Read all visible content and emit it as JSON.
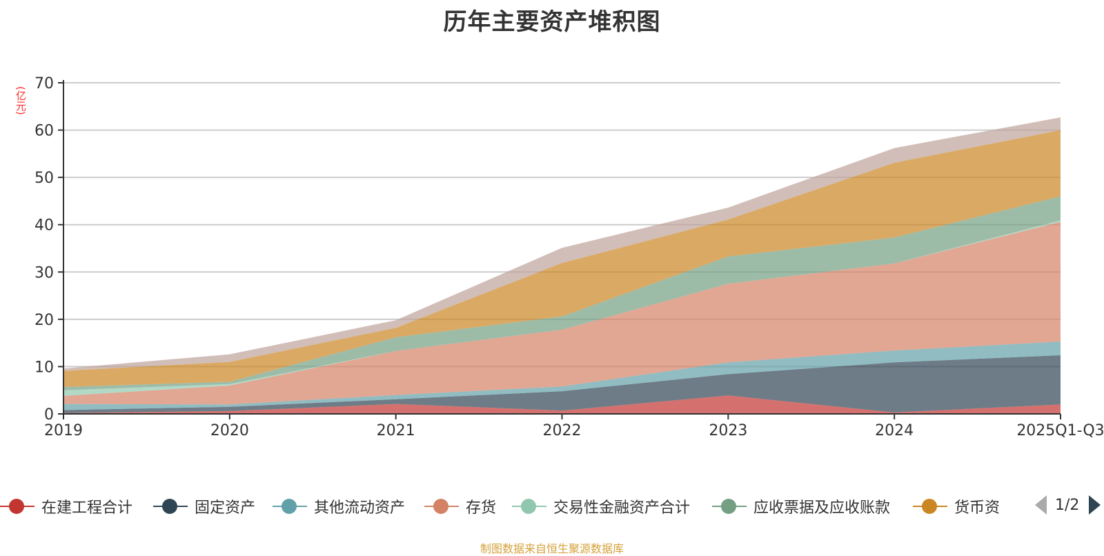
{
  "chart_data": {
    "type": "area",
    "stacked": true,
    "title": "历年主要资产堆积图",
    "ylabel": "(亿元)",
    "xlabel": "",
    "ylim": [
      0,
      70
    ],
    "yticks": [
      0,
      10,
      20,
      30,
      40,
      50,
      60,
      70
    ],
    "grid": true,
    "categories": [
      "2019",
      "2020",
      "2021",
      "2022",
      "2023",
      "2024",
      "2025Q1-Q3"
    ],
    "series": [
      {
        "name": "在建工程合计",
        "color": "#c23531",
        "values": [
          0.2,
          0.6,
          2.1,
          0.7,
          3.9,
          0.3,
          2.0
        ]
      },
      {
        "name": "固定资产",
        "color": "#2f4554",
        "values": [
          0.6,
          0.9,
          1.0,
          4.1,
          4.5,
          10.6,
          10.4
        ]
      },
      {
        "name": "其他流动资产",
        "color": "#61a0a8",
        "values": [
          1.3,
          0.5,
          0.9,
          1.0,
          2.5,
          2.5,
          2.9
        ]
      },
      {
        "name": "存货",
        "color": "#d48265",
        "values": [
          1.7,
          4.0,
          9.3,
          12.0,
          16.6,
          18.4,
          25.3
        ]
      },
      {
        "name": "交易性金融资产合计",
        "color": "#91c7ae",
        "values": [
          1.2,
          0.3,
          0.0,
          0.0,
          0.0,
          0.0,
          0.3
        ]
      },
      {
        "name": "应收票据及应收账款",
        "color": "#749f83",
        "values": [
          0.7,
          0.5,
          2.9,
          2.8,
          5.8,
          5.5,
          5.1
        ]
      },
      {
        "name": "货币资",
        "color": "#ca8622",
        "values": [
          3.4,
          4.2,
          2.0,
          11.3,
          7.8,
          15.8,
          14.0
        ]
      },
      {
        "name": "",
        "color": "#bda29a",
        "values": [
          0.5,
          1.6,
          1.6,
          3.2,
          2.5,
          3.1,
          2.7
        ]
      }
    ],
    "legend": {
      "position": "bottom",
      "page": "1/2",
      "visible_items": [
        "在建工程合计",
        "固定资产",
        "其他流动资产",
        "存货",
        "交易性金融资产合计",
        "应收票据及应收账款",
        "货币资"
      ]
    }
  },
  "footer": {
    "source": "制图数据来自恒生聚源数据库"
  }
}
